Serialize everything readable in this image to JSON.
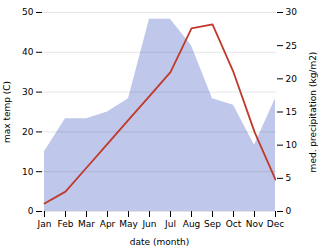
{
  "chart_data": {
    "type": "line",
    "categories": [
      "Jan",
      "Feb",
      "Mar",
      "Apr",
      "May",
      "Jun",
      "Jul",
      "Aug",
      "Sep",
      "Oct",
      "Nov",
      "Dec"
    ],
    "series": [
      {
        "type": "area",
        "axis": "y2",
        "color": "#bfc8ea",
        "values": [
          9,
          14,
          14,
          15,
          17,
          29,
          29,
          25,
          17,
          16,
          10,
          17
        ]
      },
      {
        "type": "line",
        "color": "#c0392b",
        "values": [
          2,
          5,
          11,
          17,
          23,
          29,
          35,
          46,
          47,
          35,
          20,
          8
        ]
      }
    ],
    "xlabel": "date (month)",
    "ylabel": "max temp (C)",
    "y2label": "med. precipitation (kg/m2)",
    "ylim": [
      0,
      50
    ],
    "yticks": [
      0,
      10,
      20,
      30,
      40,
      50
    ],
    "y2lim": [
      0,
      30
    ],
    "y2ticks": [
      0,
      5,
      10,
      15,
      20,
      25,
      30
    ],
    "grid": true
  }
}
